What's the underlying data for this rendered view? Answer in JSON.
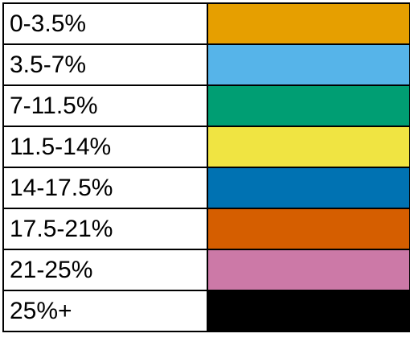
{
  "legend": {
    "rows": [
      {
        "label": "0-3.5%",
        "color": "#E69F00"
      },
      {
        "label": "3.5-7%",
        "color": "#56B4E9"
      },
      {
        "label": "7-11.5%",
        "color": "#009E73"
      },
      {
        "label": "11.5-14%",
        "color": "#F0E442"
      },
      {
        "label": "14-17.5%",
        "color": "#0072B2"
      },
      {
        "label": "17.5-21%",
        "color": "#D55E00"
      },
      {
        "label": "21-25%",
        "color": "#CC79A7"
      },
      {
        "label": "25%+",
        "color": "#000000"
      }
    ]
  }
}
